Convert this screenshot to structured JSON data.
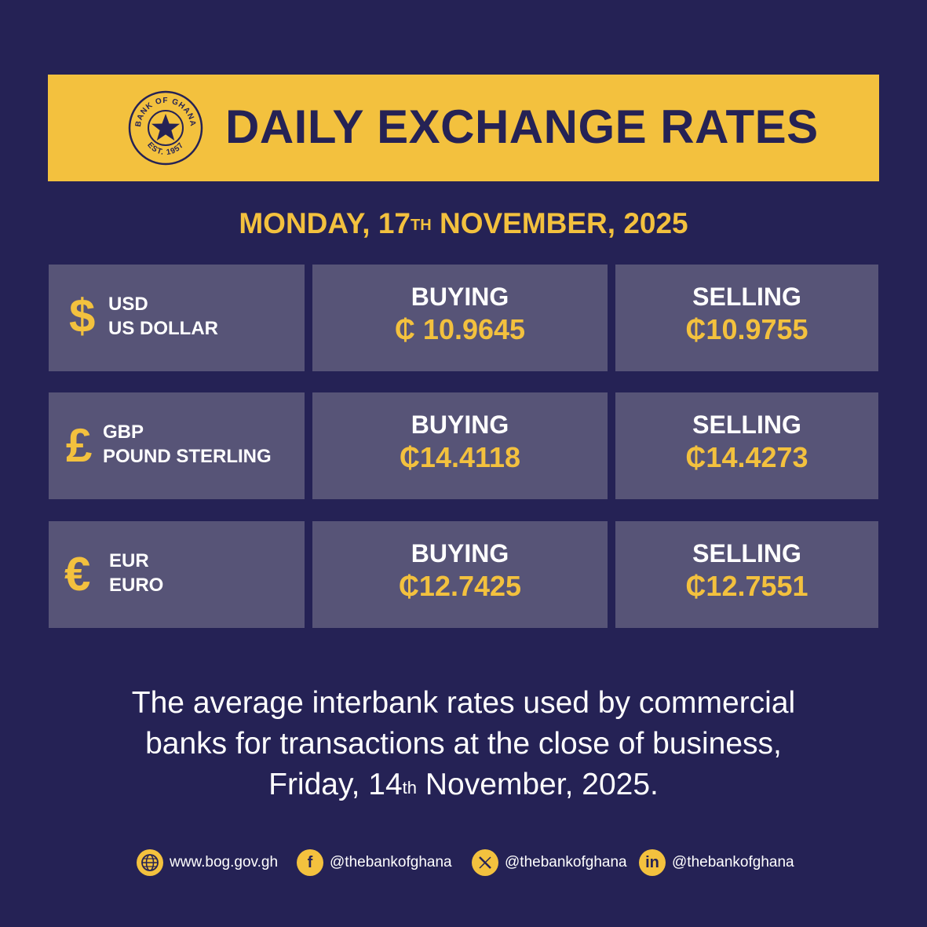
{
  "header": {
    "title": "DAILY EXCHANGE RATES",
    "logo": {
      "top_text": "BANK OF GHANA",
      "bottom_text": "EST. 1957",
      "icon": "star-icon"
    }
  },
  "date": {
    "weekday_day": "MONDAY, 17",
    "suffix": "TH",
    "month_year": " NOVEMBER, 2025"
  },
  "rates": [
    {
      "symbol": "$",
      "code": "USD",
      "name": "US DOLLAR",
      "buying_label": "BUYING",
      "buying": "₵ 10.9645",
      "selling_label": "SELLING",
      "selling": "₵10.9755"
    },
    {
      "symbol": "£",
      "code": "GBP",
      "name": "POUND STERLING",
      "buying_label": "BUYING",
      "buying": "₵14.4118",
      "selling_label": "SELLING",
      "selling": "₵14.4273"
    },
    {
      "symbol": "€",
      "code": "EUR",
      "name": "EURO",
      "buying_label": "BUYING",
      "buying": "₵12.7425",
      "selling_label": "SELLING",
      "selling": "₵12.7551"
    }
  ],
  "note": {
    "line1": "The average interbank rates used by commercial",
    "line2": "banks for transactions at the close of business,",
    "line3_a": "Friday, 14",
    "line3_sup": "th",
    "line3_b": " November, 2025."
  },
  "footer": {
    "website": "www.bog.gov.gh",
    "facebook": "@thebankofghana",
    "x": "@thebankofghana",
    "linkedin": "@thebankofghana"
  },
  "colors": {
    "background": "#252255",
    "accent": "#f3c13e",
    "cell": "#575477"
  }
}
